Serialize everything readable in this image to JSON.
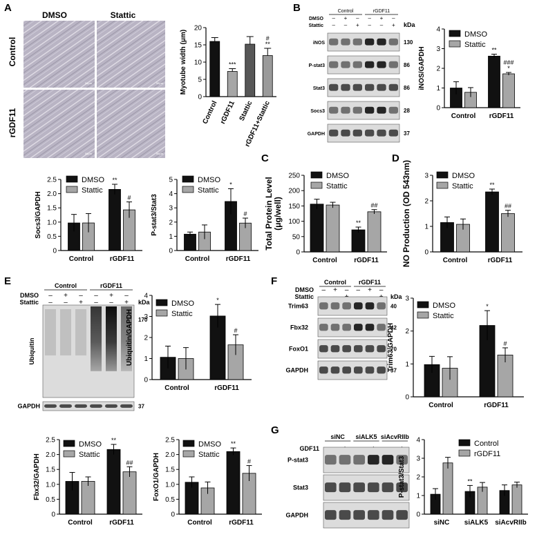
{
  "panels": [
    {
      "id": "A",
      "label": "A"
    },
    {
      "id": "B",
      "label": "B"
    },
    {
      "id": "C",
      "label": "C"
    },
    {
      "id": "D",
      "label": "D"
    },
    {
      "id": "E",
      "label": "E"
    },
    {
      "id": "F",
      "label": "F"
    },
    {
      "id": "G",
      "label": "G"
    }
  ],
  "colors": {
    "black_bar": "#111111",
    "gray_bar": "#a6a6a6",
    "blot_bg": "#dcdcdc",
    "blot_band": "#1a1a1a",
    "micro_bg": "#b9b4c4",
    "micro_line": "#f1eff5"
  },
  "micrographs": {
    "col_labels": [
      "DMSO",
      "Stattic"
    ],
    "row_labels": [
      "Control",
      "rGDF11"
    ],
    "scale_text": "50μm"
  },
  "blots": {
    "B": {
      "groups": [
        "Control",
        "rGDF11"
      ],
      "rows": [
        {
          "label": "DMSO",
          "signs": [
            "–",
            "+",
            "–",
            "–",
            "+",
            "–"
          ]
        },
        {
          "label": "Stattic",
          "signs": [
            "–",
            "–",
            "+",
            "–",
            "–",
            "+"
          ]
        }
      ],
      "kda_label": "kDa",
      "bands": [
        {
          "name": "iNOS",
          "kda": "130"
        },
        {
          "name": "P-stat3",
          "kda": "86"
        },
        {
          "name": "Stat3",
          "kda": "86"
        },
        {
          "name": "Socs3",
          "kda": "28"
        },
        {
          "name": "GAPDH",
          "kda": "37"
        }
      ]
    },
    "E": {
      "groups": [
        "Control",
        "rGDF11"
      ],
      "rows": [
        {
          "label": "DMSO",
          "signs": [
            "–",
            "+",
            "–",
            "–",
            "+",
            "–"
          ]
        },
        {
          "label": "Stattic",
          "signs": [
            "–",
            "–",
            "+",
            "–",
            "–",
            "+"
          ]
        }
      ],
      "kda_label": "kDa",
      "bands": [
        {
          "name": "Ubiquitin",
          "kda": "170"
        },
        {
          "name": "GAPDH",
          "kda": "37"
        }
      ]
    },
    "F": {
      "groups": [
        "Control",
        "rGDF11"
      ],
      "rows": [
        {
          "label": "DMSO",
          "signs": [
            "–",
            "+",
            "–",
            "–",
            "+",
            "–"
          ]
        },
        {
          "label": "Stattic",
          "signs": [
            "–",
            "–",
            "+",
            "–",
            "–",
            "+"
          ]
        }
      ],
      "kda_label": "kDa",
      "bands": [
        {
          "name": "Trim63",
          "kda": "40"
        },
        {
          "name": "Fbx32",
          "kda": "42"
        },
        {
          "name": "FoxO1",
          "kda": "70"
        },
        {
          "name": "GAPDH",
          "kda": "37"
        }
      ]
    },
    "G": {
      "groups": [
        "siNC",
        "siALK5",
        "siAcvRIIb"
      ],
      "rows": [
        {
          "label": "GDF11",
          "signs": [
            "–",
            "+",
            "–",
            "+",
            "–",
            "+"
          ]
        }
      ],
      "bands": [
        {
          "name": "P-stat3"
        },
        {
          "name": "Stat3"
        },
        {
          "name": "GAPDH"
        }
      ]
    }
  },
  "chart_data": [
    {
      "id": "A-myotube",
      "type": "bar",
      "categories": [
        "Control",
        "rGDF11",
        "Stattic",
        "rGDF11+Stattic"
      ],
      "values": [
        16,
        7.3,
        15.2,
        11.9
      ],
      "errors": [
        1.1,
        0.8,
        2.2,
        2.1
      ],
      "ylabel": "Myotube width (μm)",
      "ylim": [
        0,
        20
      ],
      "yticks": [
        0,
        5,
        10,
        15,
        20
      ],
      "annotations": [
        "",
        "***",
        "",
        "#\n**"
      ]
    },
    {
      "id": "B-inos",
      "type": "bar",
      "categories": [
        "Control",
        "rGDF11"
      ],
      "series": [
        {
          "name": "DMSO",
          "values": [
            1.0,
            2.62
          ],
          "errors": [
            0.32,
            0.1
          ]
        },
        {
          "name": "Stattic",
          "values": [
            0.78,
            1.72
          ],
          "errors": [
            0.24,
            0.07
          ]
        }
      ],
      "ylabel": "iNOS/GAPDH",
      "ylim": [
        0,
        4
      ],
      "yticks": [
        0,
        1,
        2,
        3,
        4
      ],
      "annotations": [
        [
          "",
          ""
        ],
        [
          "**",
          "###\n*"
        ]
      ],
      "legend": "top-right"
    },
    {
      "id": "socs3",
      "type": "bar",
      "categories": [
        "Control",
        "rGDF11"
      ],
      "series": [
        {
          "name": "DMSO",
          "values": [
            0.97,
            2.15
          ],
          "errors": [
            0.3,
            0.18
          ]
        },
        {
          "name": "Stattic",
          "values": [
            0.97,
            1.43
          ],
          "errors": [
            0.33,
            0.28
          ]
        }
      ],
      "ylabel": "Socs3/GAPDH",
      "ylim": [
        0,
        2.5
      ],
      "yticks": [
        0,
        0.5,
        1.0,
        1.5,
        2.0,
        2.5
      ],
      "annotations": [
        [
          "",
          ""
        ],
        [
          "**",
          "#"
        ]
      ],
      "legend": "top-right"
    },
    {
      "id": "pstat3",
      "type": "bar",
      "categories": [
        "Control",
        "rGDF11"
      ],
      "series": [
        {
          "name": "DMSO",
          "values": [
            1.15,
            3.45
          ],
          "errors": [
            0.15,
            0.9
          ]
        },
        {
          "name": "Stattic",
          "values": [
            1.3,
            1.93
          ],
          "errors": [
            0.5,
            0.35
          ]
        }
      ],
      "ylabel": "P-stat3/Stat3",
      "ylim": [
        0,
        5
      ],
      "yticks": [
        0,
        1,
        2,
        3,
        4,
        5
      ],
      "annotations": [
        [
          "",
          ""
        ],
        [
          "*",
          "#"
        ]
      ],
      "legend": "top-right"
    },
    {
      "id": "C-protein",
      "type": "bar",
      "categories": [
        "Control",
        "rGDF11"
      ],
      "series": [
        {
          "name": "DMSO",
          "values": [
            156,
            72
          ],
          "errors": [
            16,
            9
          ]
        },
        {
          "name": "Stattic",
          "values": [
            153,
            131
          ],
          "errors": [
            9,
            7
          ]
        }
      ],
      "ylabel": "Total Protein Level\n(μg/well)",
      "ylim": [
        0,
        250
      ],
      "yticks": [
        0,
        50,
        100,
        150,
        200,
        250
      ],
      "annotations": [
        [
          "",
          ""
        ],
        [
          "**",
          "##"
        ]
      ],
      "legend": "top"
    },
    {
      "id": "D-no",
      "type": "bar",
      "categories": [
        "Control",
        "rGDF11"
      ],
      "series": [
        {
          "name": "DMSO",
          "values": [
            1.15,
            2.35
          ],
          "errors": [
            0.22,
            0.11
          ]
        },
        {
          "name": "Stattic",
          "values": [
            1.08,
            1.5
          ],
          "errors": [
            0.21,
            0.13
          ]
        }
      ],
      "ylabel": "NO Production (OD 543nm)",
      "ylim": [
        0,
        3
      ],
      "yticks": [
        0,
        1,
        2,
        3
      ],
      "annotations": [
        [
          "",
          ""
        ],
        [
          "**",
          "##"
        ]
      ],
      "legend": "top-left"
    },
    {
      "id": "E-ubiquitin",
      "type": "bar",
      "categories": [
        "Control",
        "rGDF11"
      ],
      "series": [
        {
          "name": "DMSO",
          "values": [
            1.06,
            3.02
          ],
          "errors": [
            0.53,
            0.55
          ]
        },
        {
          "name": "Stattic",
          "values": [
            1.0,
            1.65
          ],
          "errors": [
            0.52,
            0.48
          ]
        }
      ],
      "ylabel": "Ubiquitin/GAPDH",
      "ylim": [
        0,
        4
      ],
      "yticks": [
        0,
        1,
        2,
        3,
        4
      ],
      "annotations": [
        [
          "",
          ""
        ],
        [
          "*",
          "#"
        ]
      ],
      "legend": "top-right"
    },
    {
      "id": "F-trim63",
      "type": "bar",
      "categories": [
        "Control",
        "rGDF11"
      ],
      "series": [
        {
          "name": "DMSO",
          "values": [
            0.98,
            2.17
          ],
          "errors": [
            0.25,
            0.45
          ]
        },
        {
          "name": "Stattic",
          "values": [
            0.87,
            1.27
          ],
          "errors": [
            0.35,
            0.22
          ]
        }
      ],
      "ylabel": "Trim63/GAPDH",
      "ylim": [
        0,
        3
      ],
      "yticks": [
        0,
        1,
        2,
        3
      ],
      "annotations": [
        [
          "",
          ""
        ],
        [
          "*",
          "#"
        ]
      ],
      "legend": "top-right"
    },
    {
      "id": "fbx32",
      "type": "bar",
      "categories": [
        "Control",
        "rGDF11"
      ],
      "series": [
        {
          "name": "DMSO",
          "values": [
            1.1,
            2.17
          ],
          "errors": [
            0.3,
            0.17
          ]
        },
        {
          "name": "Stattic",
          "values": [
            1.1,
            1.42
          ],
          "errors": [
            0.15,
            0.17
          ]
        }
      ],
      "ylabel": "Fbx32/GAPDH",
      "ylim": [
        0,
        2.5
      ],
      "yticks": [
        0,
        0.5,
        1.0,
        1.5,
        2.0,
        2.5
      ],
      "annotations": [
        [
          "",
          ""
        ],
        [
          "**",
          "##"
        ]
      ],
      "legend": "top-left"
    },
    {
      "id": "foxo1",
      "type": "bar",
      "categories": [
        "Control",
        "rGDF11"
      ],
      "series": [
        {
          "name": "DMSO",
          "values": [
            1.07,
            2.1
          ],
          "errors": [
            0.18,
            0.12
          ]
        },
        {
          "name": "Stattic",
          "values": [
            0.88,
            1.37
          ],
          "errors": [
            0.2,
            0.26
          ]
        }
      ],
      "ylabel": "FoxO1/GAPDH",
      "ylim": [
        0,
        2.5
      ],
      "yticks": [
        0,
        0.5,
        1.0,
        1.5,
        2.0,
        2.5
      ],
      "annotations": [
        [
          "",
          ""
        ],
        [
          "**",
          "#"
        ]
      ],
      "legend": "top-right"
    },
    {
      "id": "G-pstat3",
      "type": "bar",
      "categories": [
        "siNC",
        "siALK5",
        "siAcvRIIb"
      ],
      "series": [
        {
          "name": "Control",
          "values": [
            1.07,
            1.22,
            1.27
          ],
          "errors": [
            0.3,
            0.32,
            0.3
          ]
        },
        {
          "name": "rGDF11",
          "values": [
            2.75,
            1.45,
            1.57
          ],
          "errors": [
            0.3,
            0.25,
            0.15
          ]
        }
      ],
      "ylabel": "P-stat3/Stat3",
      "ylim": [
        0,
        4
      ],
      "yticks": [
        0,
        1,
        2,
        3,
        4
      ],
      "annotations": [
        [
          "",
          ""
        ],
        [
          "**",
          "",
          ""
        ]
      ],
      "legend": "top-right"
    }
  ]
}
